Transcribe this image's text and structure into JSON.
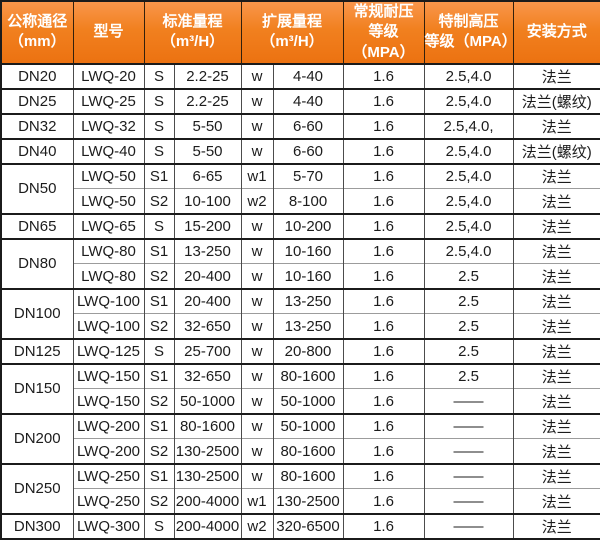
{
  "colors": {
    "header_orange": "#f1801f",
    "header_orange_light": "#f9964b",
    "header_orange_dark": "#ec7211",
    "border_dark": "#1b1b1b",
    "border_inner": "#9c9c9c",
    "header_text": "#ffffff",
    "body_text": "#1c1c1c"
  },
  "table": {
    "headers": {
      "dn_line1": "公称通径",
      "dn_line2": "（mm）",
      "model": "型号",
      "std_line1": "标准量程",
      "std_line2": "（m³/H）",
      "ext_line1": "扩展量程",
      "ext_line2": "（m³/H）",
      "pn_line1": "常规耐压",
      "pn_line2": "等级（MPA）",
      "hp_line1": "特制高压",
      "hp_line2": "等级（MPA）",
      "mount": "安装方式"
    },
    "groups": [
      {
        "dn": "DN20",
        "rows": [
          {
            "model": "LWQ-20",
            "s": "S",
            "std": "2.2-25",
            "w": "w",
            "ext": "4-40",
            "pn": "1.6",
            "hp": "2.5,4.0",
            "mount": "法兰"
          }
        ]
      },
      {
        "dn": "DN25",
        "rows": [
          {
            "model": "LWQ-25",
            "s": "S",
            "std": "2.2-25",
            "w": "w",
            "ext": "4-40",
            "pn": "1.6",
            "hp": "2.5,4.0",
            "mount": "法兰(螺纹)"
          }
        ]
      },
      {
        "dn": "DN32",
        "rows": [
          {
            "model": "LWQ-32",
            "s": "S",
            "std": "5-50",
            "w": "w",
            "ext": "6-60",
            "pn": "1.6",
            "hp": "2.5,4.0,",
            "mount": "法兰"
          }
        ]
      },
      {
        "dn": "DN40",
        "rows": [
          {
            "model": "LWQ-40",
            "s": "S",
            "std": "5-50",
            "w": "w",
            "ext": "6-60",
            "pn": "1.6",
            "hp": "2.5,4.0",
            "mount": "法兰(螺纹)"
          }
        ]
      },
      {
        "dn": "DN50",
        "rows": [
          {
            "model": "LWQ-50",
            "s": "S1",
            "std": "6-65",
            "w": "w1",
            "ext": "5-70",
            "pn": "1.6",
            "hp": "2.5,4.0",
            "mount": "法兰"
          },
          {
            "model": "LWQ-50",
            "s": "S2",
            "std": "10-100",
            "w": "w2",
            "ext": "8-100",
            "pn": "1.6",
            "hp": "2.5,4.0",
            "mount": "法兰"
          }
        ]
      },
      {
        "dn": "DN65",
        "rows": [
          {
            "model": "LWQ-65",
            "s": "S",
            "std": "15-200",
            "w": "w",
            "ext": "10-200",
            "pn": "1.6",
            "hp": "2.5,4.0",
            "mount": "法兰"
          }
        ]
      },
      {
        "dn": "DN80",
        "rows": [
          {
            "model": "LWQ-80",
            "s": "S1",
            "std": "13-250",
            "w": "w",
            "ext": "10-160",
            "pn": "1.6",
            "hp": "2.5,4.0",
            "mount": "法兰"
          },
          {
            "model": "LWQ-80",
            "s": "S2",
            "std": "20-400",
            "w": "w",
            "ext": "10-160",
            "pn": "1.6",
            "hp": "2.5",
            "mount": "法兰"
          }
        ]
      },
      {
        "dn": "DN100",
        "rows": [
          {
            "model": "LWQ-100",
            "s": "S1",
            "std": "20-400",
            "w": "w",
            "ext": "13-250",
            "pn": "1.6",
            "hp": "2.5",
            "mount": "法兰"
          },
          {
            "model": "LWQ-100",
            "s": "S2",
            "std": "32-650",
            "w": "w",
            "ext": "13-250",
            "pn": "1.6",
            "hp": "2.5",
            "mount": "法兰"
          }
        ]
      },
      {
        "dn": "DN125",
        "rows": [
          {
            "model": "LWQ-125",
            "s": "S",
            "std": "25-700",
            "w": "w",
            "ext": "20-800",
            "pn": "1.6",
            "hp": "2.5",
            "mount": "法兰"
          }
        ]
      },
      {
        "dn": "DN150",
        "rows": [
          {
            "model": "LWQ-150",
            "s": "S1",
            "std": "32-650",
            "w": "w",
            "ext": "80-1600",
            "pn": "1.6",
            "hp": "2.5",
            "mount": "法兰"
          },
          {
            "model": "LWQ-150",
            "s": "S2",
            "std": "50-1000",
            "w": "w",
            "ext": "50-1000",
            "pn": "1.6",
            "hp": "——",
            "mount": "法兰"
          }
        ]
      },
      {
        "dn": "DN200",
        "rows": [
          {
            "model": "LWQ-200",
            "s": "S1",
            "std": "80-1600",
            "w": "w",
            "ext": "50-1000",
            "pn": "1.6",
            "hp": "——",
            "mount": "法兰"
          },
          {
            "model": "LWQ-200",
            "s": "S2",
            "std": "130-2500",
            "w": "w",
            "ext": "80-1600",
            "pn": "1.6",
            "hp": "——",
            "mount": "法兰"
          }
        ]
      },
      {
        "dn": "DN250",
        "rows": [
          {
            "model": "LWQ-250",
            "s": "S1",
            "std": "130-2500",
            "w": "w",
            "ext": "80-1600",
            "pn": "1.6",
            "hp": "——",
            "mount": "法兰"
          },
          {
            "model": "LWQ-250",
            "s": "S2",
            "std": "200-4000",
            "w": "w1",
            "ext": "130-2500",
            "pn": "1.6",
            "hp": "——",
            "mount": "法兰"
          }
        ]
      },
      {
        "dn": "DN300",
        "rows": [
          {
            "model": "LWQ-300",
            "s": "S",
            "std": "200-4000",
            "w": "w2",
            "ext": "320-6500",
            "pn": "1.6",
            "hp": "——",
            "mount": "法兰"
          }
        ]
      }
    ]
  }
}
